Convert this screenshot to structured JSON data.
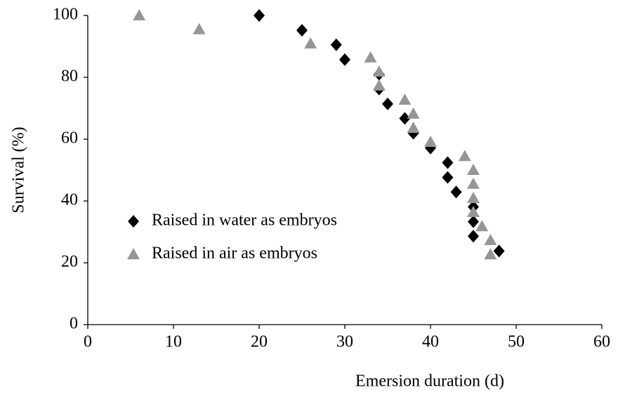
{
  "chart_data": {
    "type": "scatter",
    "xlabel": "Emersion duration (d)",
    "ylabel": "Survival (%)",
    "xlim": [
      0,
      60
    ],
    "xticks": [
      0,
      10,
      20,
      30,
      40,
      50,
      60
    ],
    "ylim": [
      0,
      100
    ],
    "yticks": [
      0,
      20,
      40,
      60,
      80,
      100
    ],
    "series": [
      {
        "name": "Raised in water as embryos",
        "color": "#000000",
        "marker": "diamond",
        "x": [
          20,
          25,
          29,
          30,
          34,
          34,
          35,
          37,
          38,
          40,
          42,
          42,
          43,
          45,
          45,
          45,
          48
        ],
        "values": [
          100,
          95.2,
          90.5,
          85.7,
          81,
          76.2,
          71.4,
          66.7,
          61.9,
          57.1,
          52.4,
          47.6,
          42.9,
          38.1,
          33.3,
          28.6,
          23.8
        ]
      },
      {
        "name": "Raised in air as embryos",
        "color": "#969696",
        "marker": "triangle",
        "x": [
          6,
          13,
          26,
          33,
          34,
          34,
          37,
          38,
          38,
          40,
          44,
          45,
          45,
          45,
          45,
          46,
          47,
          47
        ],
        "values": [
          100,
          95.5,
          90.9,
          86.4,
          81.8,
          77.3,
          72.7,
          68.2,
          63.6,
          59.1,
          54.5,
          50,
          45.5,
          40.9,
          36.4,
          31.8,
          27.3,
          22.7
        ]
      }
    ]
  }
}
